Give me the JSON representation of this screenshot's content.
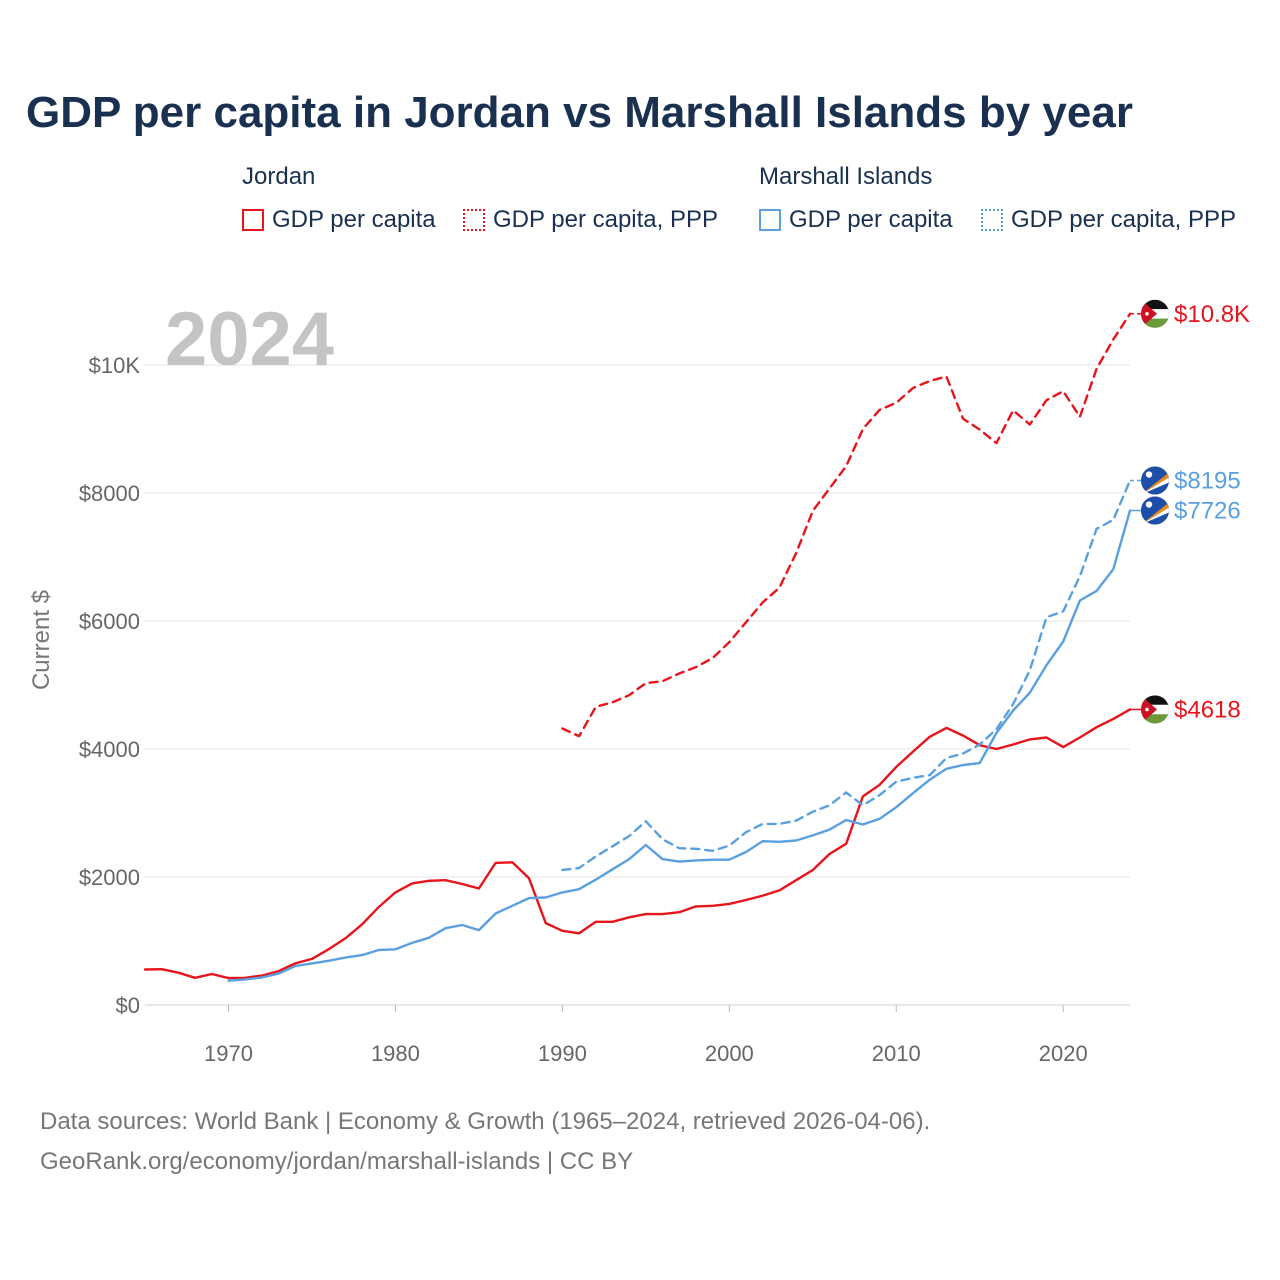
{
  "title": "GDP per capita in Jordan vs Marshall Islands by year",
  "legend": {
    "groups": [
      {
        "name": "Jordan",
        "color": "#e8141c",
        "items": [
          {
            "label": "GDP per capita",
            "style": "solid"
          },
          {
            "label": "GDP per capita, PPP",
            "style": "dotted"
          }
        ]
      },
      {
        "name": "Marshall Islands",
        "color": "#5aa0e0",
        "items": [
          {
            "label": "GDP per capita",
            "style": "solid"
          },
          {
            "label": "GDP per capita, PPP",
            "style": "dotted"
          }
        ]
      }
    ]
  },
  "year_watermark": "2024",
  "source": {
    "line1": "Data sources: World Bank | Economy & Growth (1965–2024, retrieved 2026-04-06).",
    "line2": "GeoRank.org/economy/jordan/marshall-islands | CC BY"
  },
  "chart_data": {
    "type": "line",
    "title": "GDP per capita in Jordan vs Marshall Islands by year",
    "xlabel": "",
    "ylabel": "Current $",
    "xlim": [
      1965,
      2024
    ],
    "ylim": [
      0,
      10800
    ],
    "x_ticks": [
      1970,
      1980,
      1990,
      2000,
      2010,
      2020
    ],
    "x_tick_labels": [
      "1970",
      "1980",
      "1990",
      "2000",
      "2010",
      "2020"
    ],
    "y_ticks": [
      0,
      2000,
      4000,
      6000,
      8000,
      10000
    ],
    "y_tick_labels": [
      "$0",
      "$2000",
      "$4000",
      "$6000",
      "$8000",
      "$10K"
    ],
    "grid": true,
    "series": [
      {
        "name": "Jordan GDP per capita",
        "country": "Jordan",
        "color": "#e8141c",
        "dashed": false,
        "end_label": "$4618",
        "flag": "jordan-flag",
        "x": [
          1965,
          1966,
          1967,
          1968,
          1969,
          1970,
          1971,
          1972,
          1973,
          1974,
          1975,
          1976,
          1977,
          1978,
          1979,
          1980,
          1981,
          1982,
          1983,
          1984,
          1985,
          1986,
          1987,
          1988,
          1989,
          1990,
          1991,
          1992,
          1993,
          1994,
          1995,
          1996,
          1997,
          1998,
          1999,
          2000,
          2001,
          2002,
          2003,
          2004,
          2005,
          2006,
          2007,
          2008,
          2009,
          2010,
          2011,
          2012,
          2013,
          2014,
          2015,
          2016,
          2017,
          2018,
          2019,
          2020,
          2021,
          2022,
          2023,
          2024
        ],
        "values": [
          555,
          560,
          505,
          425,
          485,
          420,
          425,
          460,
          530,
          650,
          720,
          870,
          1040,
          1260,
          1530,
          1760,
          1900,
          1940,
          1950,
          1890,
          1820,
          2220,
          2230,
          1980,
          1280,
          1160,
          1120,
          1300,
          1300,
          1370,
          1420,
          1420,
          1450,
          1540,
          1550,
          1580,
          1640,
          1710,
          1790,
          1950,
          2110,
          2360,
          2520,
          3260,
          3440,
          3720,
          3960,
          4190,
          4330,
          4210,
          4060,
          4000,
          4070,
          4150,
          4180,
          4030,
          4180,
          4340,
          4470,
          4618
        ]
      },
      {
        "name": "Jordan GDP per capita, PPP",
        "country": "Jordan",
        "color": "#e8141c",
        "dashed": true,
        "end_label": "$10.8K",
        "flag": "jordan-flag",
        "x": [
          1990,
          1991,
          1992,
          1993,
          1994,
          1995,
          1996,
          1997,
          1998,
          1999,
          2000,
          2001,
          2002,
          2003,
          2004,
          2005,
          2006,
          2007,
          2008,
          2009,
          2010,
          2011,
          2012,
          2013,
          2014,
          2015,
          2016,
          2017,
          2018,
          2019,
          2020,
          2021,
          2022,
          2023,
          2024
        ],
        "values": [
          4320,
          4200,
          4660,
          4730,
          4840,
          5030,
          5060,
          5180,
          5280,
          5420,
          5670,
          5980,
          6290,
          6520,
          7060,
          7720,
          8070,
          8420,
          9000,
          9300,
          9410,
          9640,
          9750,
          9820,
          9160,
          8990,
          8780,
          9290,
          9070,
          9450,
          9590,
          9190,
          9940,
          10400,
          10800
        ]
      },
      {
        "name": "Marshall Islands GDP per capita",
        "country": "Marshall Islands",
        "color": "#5aa0e0",
        "dashed": false,
        "end_label": "$7726",
        "flag": "marshall-islands-flag",
        "x": [
          1970,
          1971,
          1972,
          1973,
          1974,
          1975,
          1976,
          1977,
          1978,
          1979,
          1980,
          1981,
          1982,
          1983,
          1984,
          1985,
          1986,
          1987,
          1988,
          1989,
          1990,
          1991,
          1992,
          1993,
          1994,
          1995,
          1996,
          1997,
          1998,
          1999,
          2000,
          2001,
          2002,
          2003,
          2004,
          2005,
          2006,
          2007,
          2008,
          2009,
          2010,
          2011,
          2012,
          2013,
          2014,
          2015,
          2016,
          2017,
          2018,
          2019,
          2020,
          2021,
          2022,
          2023,
          2024
        ],
        "values": [
          380,
          400,
          430,
          490,
          610,
          650,
          690,
          740,
          780,
          860,
          870,
          970,
          1050,
          1200,
          1250,
          1170,
          1430,
          1550,
          1670,
          1680,
          1760,
          1810,
          1960,
          2120,
          2280,
          2500,
          2280,
          2240,
          2260,
          2270,
          2270,
          2390,
          2560,
          2550,
          2570,
          2650,
          2740,
          2890,
          2820,
          2910,
          3090,
          3310,
          3520,
          3690,
          3750,
          3780,
          4250,
          4600,
          4880,
          5310,
          5680,
          6320,
          6470,
          6810,
          7726
        ]
      },
      {
        "name": "Marshall Islands GDP per capita, PPP",
        "country": "Marshall Islands",
        "color": "#5aa0e0",
        "dashed": true,
        "end_label": "$8195",
        "flag": "marshall-islands-flag",
        "x": [
          1990,
          1991,
          1992,
          1993,
          1994,
          1995,
          1996,
          1997,
          1998,
          1999,
          2000,
          2001,
          2002,
          2003,
          2004,
          2005,
          2006,
          2007,
          2008,
          2009,
          2010,
          2011,
          2012,
          2013,
          2014,
          2015,
          2016,
          2017,
          2018,
          2019,
          2020,
          2021,
          2022,
          2023,
          2024
        ],
        "values": [
          2110,
          2140,
          2320,
          2480,
          2640,
          2870,
          2590,
          2450,
          2440,
          2410,
          2490,
          2700,
          2830,
          2830,
          2880,
          3020,
          3120,
          3320,
          3120,
          3280,
          3490,
          3550,
          3590,
          3860,
          3930,
          4070,
          4310,
          4700,
          5230,
          6060,
          6150,
          6700,
          7440,
          7580,
          8195
        ]
      }
    ]
  }
}
